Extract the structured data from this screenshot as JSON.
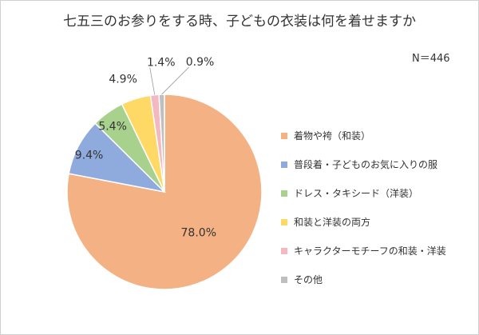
{
  "chart_data": {
    "type": "pie",
    "title": "七五三のお参りをする時、子どもの衣装は何を着せますか",
    "note": "N＝446",
    "legend_position": "right",
    "slices": [
      {
        "name": "着物や袴（和装）",
        "value": 78.0,
        "label": "78.0%",
        "color": "#F4B183"
      },
      {
        "name": "普段着・子どものお気に入りの服",
        "value": 9.4,
        "label": "9.4%",
        "color": "#8FAADC"
      },
      {
        "name": "ドレス・タキシード（洋装）",
        "value": 5.4,
        "label": "5.4%",
        "color": "#A9D18E"
      },
      {
        "name": "和装と洋装の両方",
        "value": 4.9,
        "label": "4.9%",
        "color": "#FFD966"
      },
      {
        "name": "キャラクターモチーフの和装・洋装",
        "value": 1.4,
        "label": "1.4%",
        "color": "#F4B8C0"
      },
      {
        "name": "その他",
        "value": 0.9,
        "label": "0.9%",
        "color": "#BFBFBF"
      }
    ]
  }
}
